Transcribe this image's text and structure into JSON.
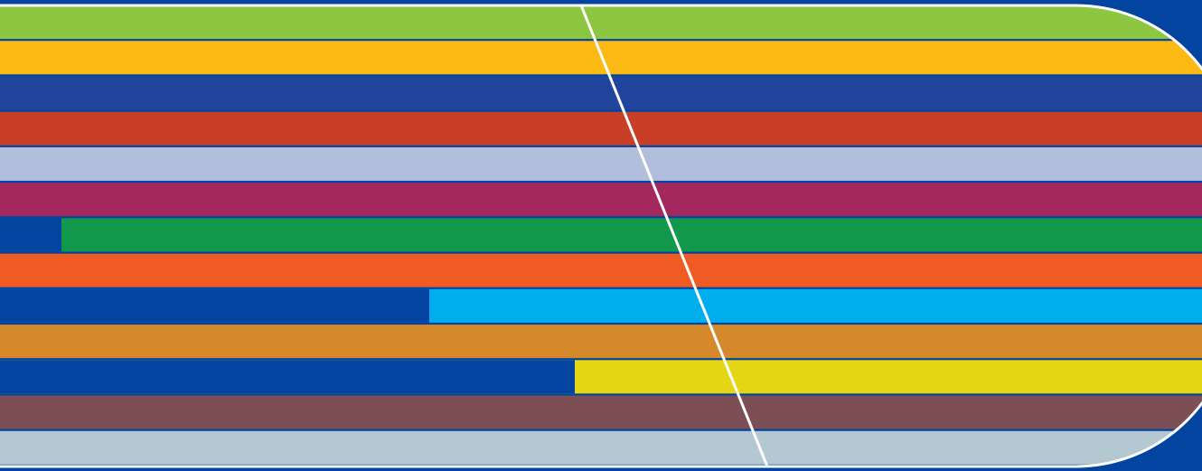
{
  "background_color": "#0244A0",
  "outline_color": "#FFFFFF",
  "divider_color": "#FFFFFF",
  "stripes": [
    {
      "name": "green",
      "color": "#8DC641"
    },
    {
      "name": "amber",
      "color": "#FDB913"
    },
    {
      "name": "navy",
      "color": "#21449C"
    },
    {
      "name": "red",
      "color": "#C93E26"
    },
    {
      "name": "lavender",
      "color": "#B1BEDB"
    },
    {
      "name": "magenta",
      "color": "#A2285D"
    },
    {
      "name": "emerald",
      "color": "#12984A",
      "left_color": "#0244A0"
    },
    {
      "name": "orange",
      "color": "#F05A23"
    },
    {
      "name": "sky",
      "color": "#00AEEF",
      "left_color": "#0244A0"
    },
    {
      "name": "ochre",
      "color": "#D6892A"
    },
    {
      "name": "yellow",
      "color": "#E4D614",
      "left_color": "#0244A0"
    },
    {
      "name": "plum",
      "color": "#7C4F55"
    },
    {
      "name": "pale-blue",
      "color": "#B3C8D0"
    }
  ]
}
